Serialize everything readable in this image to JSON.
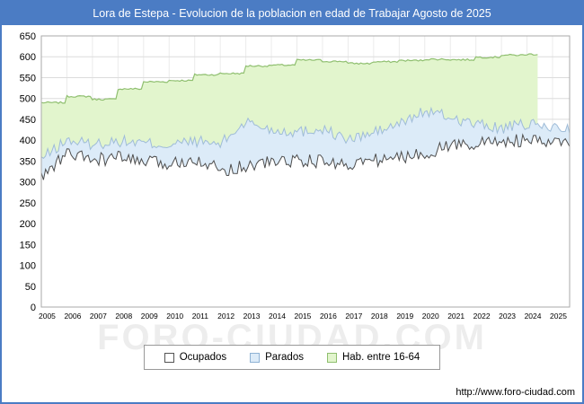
{
  "title": "Lora de Estepa - Evolucion de la poblacion en edad de Trabajar Agosto de 2025",
  "watermark": "FORO-CIUDAD.COM",
  "source_url": "http://www.foro-ciudad.com",
  "colors": {
    "titlebar": "#4b7cc4",
    "frame_border": "#4b7cc4",
    "grid_h": "#dcdcdc",
    "grid_v": "#ebebeb",
    "axis": "#aaaaaa"
  },
  "legend": {
    "items": [
      {
        "label": "Ocupados",
        "color": "#ffffff",
        "border": "#555555"
      },
      {
        "label": "Parados",
        "color": "#dcebf8",
        "border": "#8fb2d4"
      },
      {
        "label": "Hab. entre 16-64",
        "color": "#e2f5cd",
        "border": "#8fbf6f"
      }
    ]
  },
  "chart_data": {
    "type": "area",
    "title": "Lora de Estepa - Evolucion de la poblacion en edad de Trabajar Agosto de 2025",
    "xlabel": "",
    "ylabel": "",
    "x_years": [
      2005,
      2006,
      2007,
      2008,
      2009,
      2010,
      2011,
      2012,
      2013,
      2014,
      2015,
      2016,
      2017,
      2018,
      2019,
      2020,
      2021,
      2022,
      2023,
      2024,
      2025
    ],
    "x_start": 2005,
    "x_end": 2025.667,
    "ylim": [
      0,
      650
    ],
    "y_tick_step": 50,
    "grid": true,
    "legend_position": "bottom",
    "note": "Monthly series Jan-2005 to Aug-2025; yearly anchor values below, Hab. 16-64 series ends mid-2024",
    "series": [
      {
        "name": "Hab. entre 16-64",
        "years": [
          2005,
          2006,
          2007,
          2008,
          2009,
          2010,
          2011,
          2012,
          2013,
          2014,
          2015,
          2016,
          2017,
          2018,
          2019,
          2020,
          2021,
          2022,
          2023,
          2024
        ],
        "values": [
          490,
          505,
          498,
          523,
          540,
          543,
          557,
          560,
          578,
          580,
          592,
          589,
          584,
          588,
          591,
          594,
          593,
          599,
          604,
          606
        ],
        "fill": "#e2f5cd",
        "stroke": "#8fbf6f",
        "stroke_width": 1.2,
        "step": true,
        "noise": 2,
        "seed": 7,
        "months": 234
      },
      {
        "name": "Parados",
        "years": [
          2005,
          2006,
          2007,
          2008,
          2009,
          2010,
          2011,
          2012,
          2013,
          2014,
          2015,
          2016,
          2017,
          2018,
          2019,
          2020,
          2021,
          2022,
          2023,
          2024,
          2025
        ],
        "values": [
          355,
          400,
          390,
          398,
          393,
          388,
          398,
          390,
          445,
          425,
          420,
          428,
          400,
          418,
          438,
          470,
          455,
          438,
          428,
          438,
          430
        ],
        "fill": "#dcebf8",
        "stroke": "#9fbcd8",
        "stroke_width": 1,
        "step": false,
        "noise": 14,
        "seed": 13,
        "months": 249
      },
      {
        "name": "Ocupados",
        "years": [
          2005,
          2006,
          2007,
          2008,
          2009,
          2010,
          2011,
          2012,
          2013,
          2014,
          2015,
          2016,
          2017,
          2018,
          2019,
          2020,
          2021,
          2022,
          2023,
          2024,
          2025
        ],
        "values": [
          310,
          368,
          352,
          358,
          348,
          342,
          358,
          328,
          338,
          348,
          352,
          348,
          342,
          352,
          358,
          368,
          388,
          392,
          398,
          398,
          393
        ],
        "fill": "#ffffff",
        "stroke": "#4d4d4d",
        "stroke_width": 1,
        "step": false,
        "noise": 16,
        "seed": 99,
        "months": 249
      }
    ]
  }
}
